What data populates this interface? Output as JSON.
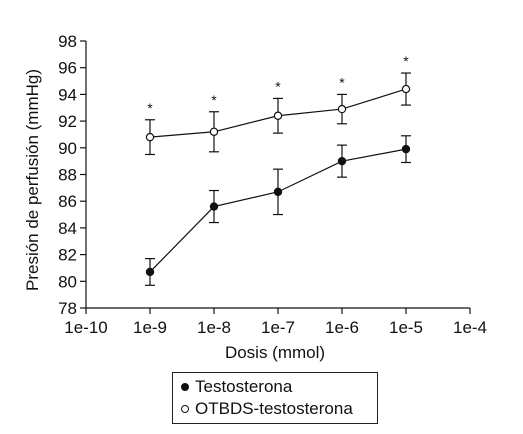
{
  "chart_data": {
    "type": "line",
    "xlabel": "Dosis (mmol)",
    "ylabel": "Presión de perfusión (mmHg)",
    "x_ticks": [
      "1e-10",
      "1e-9",
      "1e-8",
      "1e-7",
      "1e-6",
      "1e-5",
      "1e-4"
    ],
    "x_scale": "log",
    "xlim": [
      "1e-10",
      "1e-4"
    ],
    "y_ticks": [
      78,
      80,
      82,
      84,
      86,
      88,
      90,
      92,
      94,
      96,
      98
    ],
    "ylim": [
      78,
      98
    ],
    "grid": false,
    "legend_position": "bottom-center",
    "series": [
      {
        "name": "Testosterona",
        "marker": "filled-circle",
        "color": "#111111",
        "x": [
          "1e-9",
          "1e-8",
          "1e-7",
          "1e-6",
          "1e-5"
        ],
        "values": [
          80.7,
          85.6,
          86.7,
          89.0,
          89.9
        ],
        "errors": [
          1.0,
          1.2,
          1.7,
          1.2,
          1.0
        ]
      },
      {
        "name": "OTBDS-testosterona",
        "marker": "open-circle",
        "color": "#111111",
        "x": [
          "1e-9",
          "1e-8",
          "1e-7",
          "1e-6",
          "1e-5"
        ],
        "values": [
          90.8,
          91.2,
          92.4,
          92.9,
          94.4
        ],
        "errors": [
          1.3,
          1.5,
          1.3,
          1.1,
          1.2
        ],
        "annotations": [
          "*",
          "*",
          "*",
          "*",
          "*"
        ]
      }
    ]
  }
}
